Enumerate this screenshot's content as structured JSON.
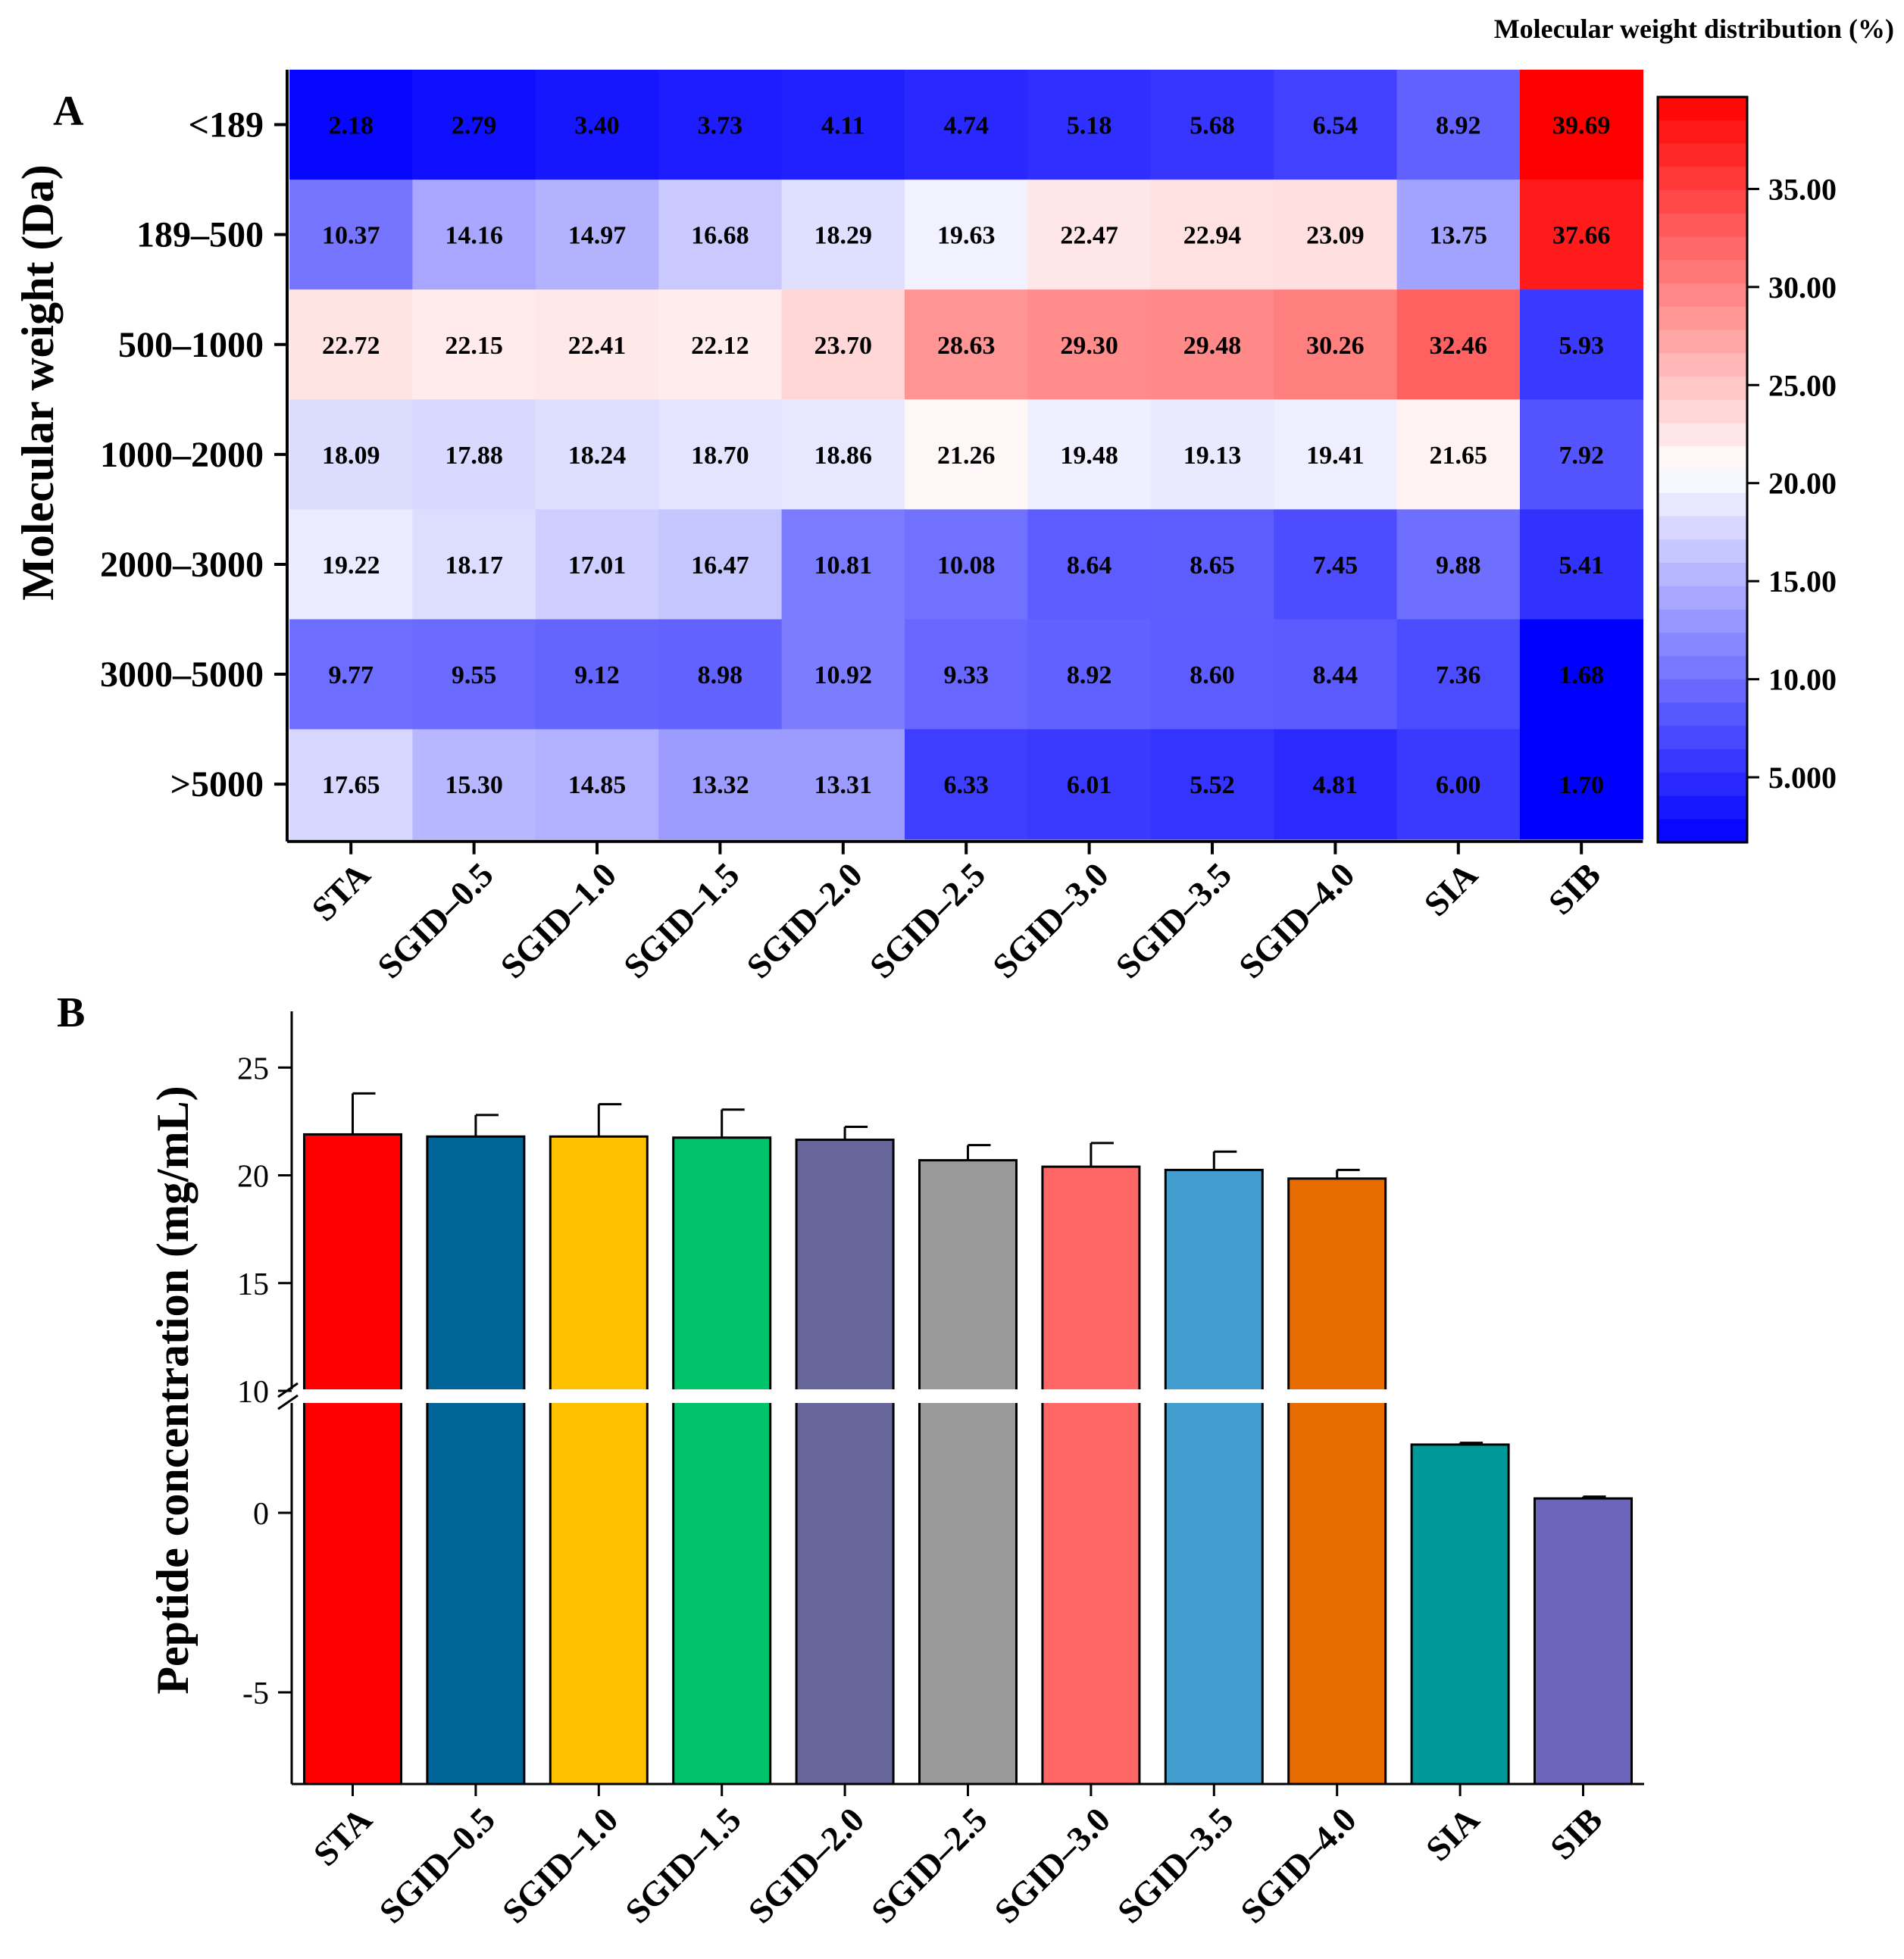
{
  "chart_data": [
    {
      "type": "heatmap",
      "panel_label": "A",
      "colorbar_title": "Molecular weight distribution (%)",
      "ylabel": "Molecular weight (Da)",
      "rows": [
        "<189",
        "189–500",
        "500–1000",
        "1000–2000",
        "2000–3000",
        "3000–5000",
        ">5000"
      ],
      "columns": [
        "STA",
        "SGID–0.5",
        "SGID–1.0",
        "SGID–1.5",
        "SGID–2.0",
        "SGID–2.5",
        "SGID–3.0",
        "SGID–3.5",
        "SGID–4.0",
        "SIA",
        "SIB"
      ],
      "values": [
        [
          "2.18",
          "2.79",
          "3.40",
          "3.73",
          "4.11",
          "4.74",
          "5.18",
          "5.68",
          "6.54",
          "8.92",
          "39.69"
        ],
        [
          "10.37",
          "14.16",
          "14.97",
          "16.68",
          "18.29",
          "19.63",
          "22.47",
          "22.94",
          "23.09",
          "13.75",
          "37.66"
        ],
        [
          "22.72",
          "22.15",
          "22.41",
          "22.12",
          "23.70",
          "28.63",
          "29.30",
          "29.48",
          "30.26",
          "32.46",
          "5.93"
        ],
        [
          "18.09",
          "17.88",
          "18.24",
          "18.70",
          "18.86",
          "21.26",
          "19.48",
          "19.13",
          "19.41",
          "21.65",
          "7.92"
        ],
        [
          "19.22",
          "18.17",
          "17.01",
          "16.47",
          "10.81",
          "10.08",
          "8.64",
          "8.65",
          "7.45",
          "9.88",
          "5.41"
        ],
        [
          "9.77",
          "9.55",
          "9.12",
          "8.98",
          "10.92",
          "9.33",
          "8.92",
          "8.60",
          "8.44",
          "7.36",
          "1.68"
        ],
        [
          "17.65",
          "15.30",
          "14.85",
          "13.32",
          "13.31",
          "6.33",
          "6.01",
          "5.52",
          "4.81",
          "6.00",
          "1.70"
        ]
      ],
      "colorbar": {
        "range": [
          1.68,
          39.69
        ],
        "ticks": [
          "35.00",
          "30.00",
          "25.00",
          "20.00",
          "15.00",
          "10.00",
          "5.000"
        ],
        "tick_values": [
          35,
          30,
          25,
          20,
          15,
          10,
          5
        ],
        "low_color": "#0000ff",
        "mid_color": "#ffffff",
        "high_color": "#ff0000"
      }
    },
    {
      "type": "bar",
      "panel_label": "B",
      "ylabel": "Peptide concentration (mg/mL)",
      "categories": [
        "STA",
        "SGID–0.5",
        "SGID–1.0",
        "SGID–1.5",
        "SGID–2.0",
        "SGID–2.5",
        "SGID–3.0",
        "SGID–3.5",
        "SGID–4.0",
        "SIA",
        "SIB"
      ],
      "values": [
        21.9,
        21.8,
        21.8,
        21.75,
        21.65,
        20.7,
        20.4,
        20.25,
        19.85,
        1.9,
        0.4
      ],
      "errors": [
        1.9,
        1.0,
        1.5,
        1.3,
        0.6,
        0.7,
        1.1,
        0.85,
        0.4,
        0.05,
        0.05
      ],
      "colors": [
        "#ff0000",
        "#006699",
        "#ffc000",
        "#00c36a",
        "#66669a",
        "#999999",
        "#ff6666",
        "#439cce",
        "#e66b00",
        "#009999",
        "#6b66bb"
      ],
      "yticks_lower": [
        "-5",
        "0"
      ],
      "yticks_lower_values": [
        -5,
        0
      ],
      "yticks_upper": [
        "10",
        "15",
        "20",
        "25"
      ],
      "yticks_upper_values": [
        10,
        15,
        20,
        25
      ],
      "axis_break": [
        3.5,
        10
      ],
      "ylim": [
        -7.5,
        27.5
      ]
    }
  ]
}
